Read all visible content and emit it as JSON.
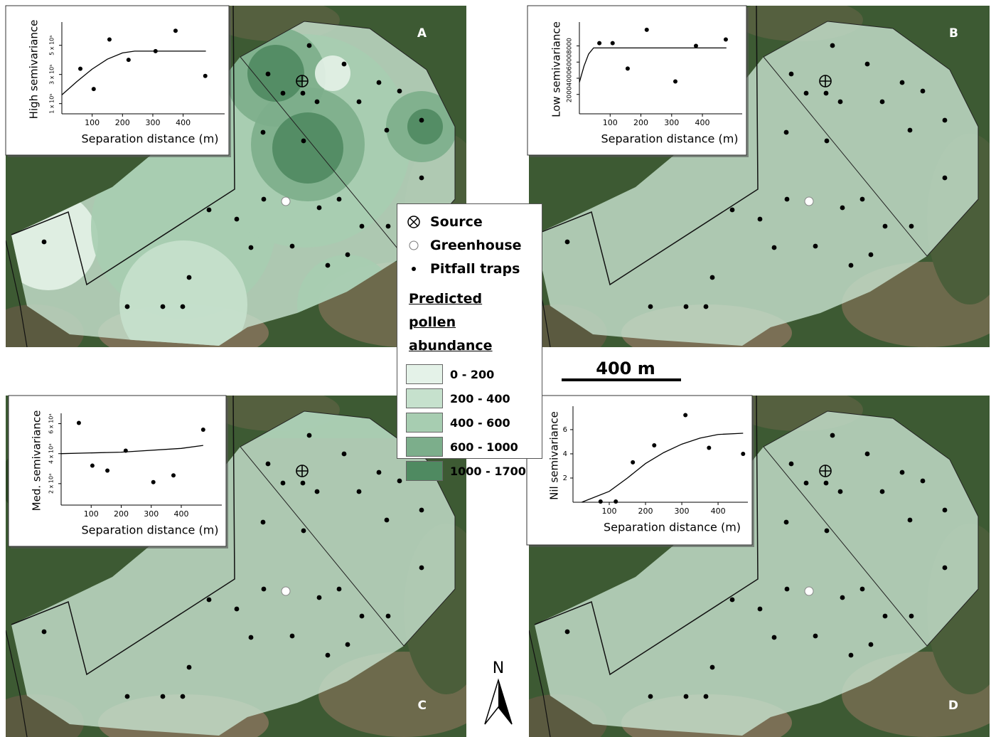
{
  "panel_labels": [
    "A",
    "B",
    "C",
    "D"
  ],
  "legend": {
    "items": [
      "Source",
      "Greenhouse",
      "Pitfall traps"
    ],
    "title": "Predicted pollen abundance",
    "classes": [
      {
        "label": "0 - 200",
        "color": "#e4f2e8"
      },
      {
        "label": "200 - 400",
        "color": "#c6e1cd"
      },
      {
        "label": "400 - 600",
        "color": "#a7cdb1"
      },
      {
        "label": "600 - 1000",
        "color": "#7cae8b"
      },
      {
        "label": "1000 - 1700",
        "color": "#4f8a61"
      }
    ]
  },
  "scale_bar": "400 m",
  "north": "N",
  "chart_data": [
    {
      "type": "scatter",
      "ylabel": "High semivariance",
      "xlabel": "Separation distance (m)",
      "xlim": [
        0,
        490
      ],
      "ylim": [
        30000,
        640000
      ],
      "xticks": [
        100,
        200,
        300,
        400
      ],
      "yticks": [
        {
          "value": 100000,
          "label": "1 x 10⁵"
        },
        {
          "value": 300000,
          "label": "3 x 10⁵"
        },
        {
          "value": 500000,
          "label": "5 x 10⁵"
        }
      ],
      "series": [
        {
          "type": "scatter",
          "color": "#000000",
          "x": [
            61,
            105,
            157,
            220,
            309,
            375,
            473
          ],
          "values": [
            339000,
            200000,
            540000,
            400000,
            460000,
            600000,
            290000
          ]
        },
        {
          "type": "line",
          "color": "#000000",
          "x": [
            0,
            50,
            100,
            150,
            200,
            240,
            300,
            400,
            475
          ],
          "values": [
            160000,
            252000,
            337000,
            405000,
            448000,
            460000,
            460000,
            460000,
            460000
          ]
        }
      ]
    },
    {
      "type": "scatter",
      "ylabel": "Low semivariance",
      "xlabel": "Separation distance (m)",
      "xlim": [
        0,
        490
      ],
      "ylim": [
        -400,
        10600
      ],
      "xticks": [
        100,
        200,
        300,
        400
      ],
      "yticks": [
        2000,
        4000,
        6000,
        8000
      ],
      "series": [
        {
          "type": "scatter",
          "color": "#000000",
          "x": [
            65,
            108,
            157,
            219,
            312,
            379,
            476
          ],
          "values": [
            8350,
            8350,
            5200,
            10000,
            3600,
            8000,
            8800
          ]
        },
        {
          "type": "line",
          "color": "#000000",
          "x": [
            0,
            15,
            30,
            46,
            478
          ],
          "values": [
            3500,
            5500,
            7000,
            7750,
            7750
          ]
        }
      ]
    },
    {
      "type": "scatter",
      "ylabel": "Med. semivariance",
      "xlabel": "Separation distance (m)",
      "xlim": [
        0,
        490
      ],
      "ylim": [
        5700,
        65000
      ],
      "xticks": [
        100,
        200,
        300,
        400
      ],
      "yticks": [
        {
          "value": 20000,
          "label": "2 x 10⁴"
        },
        {
          "value": 40000,
          "label": "4 x 10⁴"
        },
        {
          "value": 60000,
          "label": "6 x 10⁴"
        }
      ],
      "series": [
        {
          "type": "scatter",
          "color": "#000000",
          "x": [
            59,
            104,
            154,
            215,
            307,
            374,
            473
          ],
          "values": [
            60500,
            32000,
            28700,
            42000,
            21000,
            25500,
            56000
          ]
        },
        {
          "type": "line",
          "color": "#000000",
          "x": [
            0,
            200,
            400,
            473
          ],
          "values": [
            40000,
            41000,
            43500,
            45500
          ]
        }
      ]
    },
    {
      "type": "scatter",
      "ylabel": "Nil semivariance",
      "xlabel": "Separation distance (m)",
      "xlim": [
        0,
        490
      ],
      "ylim": [
        0,
        7.7
      ],
      "xticks": [
        100,
        200,
        300,
        400
      ],
      "yticks": [
        2,
        4,
        6
      ],
      "series": [
        {
          "type": "scatter",
          "color": "#000000",
          "x": [
            76,
            118,
            165,
            224,
            310,
            375,
            469
          ],
          "values": [
            0.06,
            0.06,
            3.3,
            4.7,
            7.2,
            4.5,
            4.0
          ]
        },
        {
          "type": "line",
          "color": "#000000",
          "x": [
            24,
            100,
            150,
            200,
            250,
            300,
            350,
            400,
            469
          ],
          "values": [
            0,
            0.9,
            2.0,
            3.2,
            4.1,
            4.8,
            5.3,
            5.6,
            5.7
          ]
        }
      ]
    }
  ]
}
